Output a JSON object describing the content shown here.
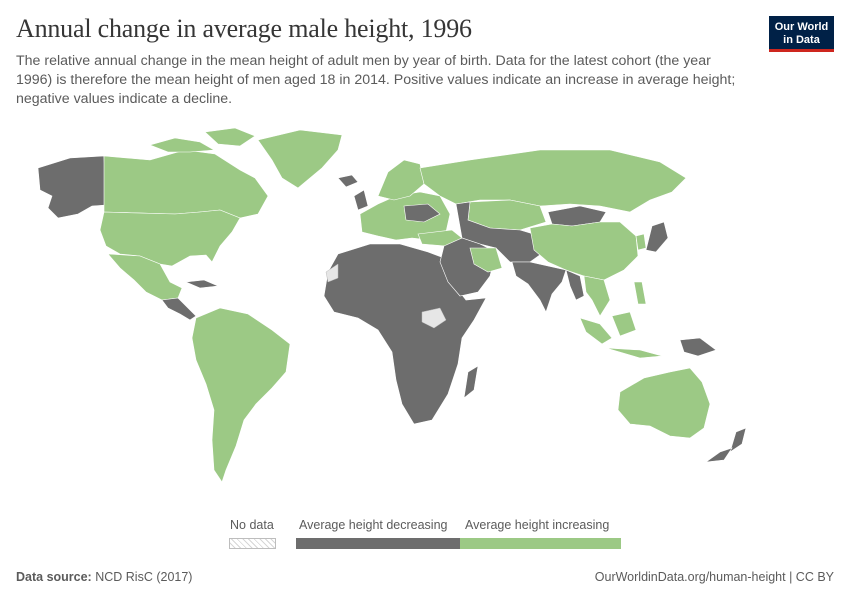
{
  "header": {
    "title": "Annual change in average male height, 1996",
    "subtitle": "The relative annual change in the mean height of adult men by year of birth. Data for the latest cohort (the year 1996) is therefore the mean height of men aged 18 in 2014. Positive values indicate an increase in average height; negative values indicate a decline."
  },
  "logo": {
    "line1": "Our World",
    "line2": "in Data"
  },
  "legend": {
    "no_data": "No data",
    "decreasing": "Average height decreasing",
    "increasing": "Average height increasing"
  },
  "colors": {
    "decreasing": "#6d6d6d",
    "increasing": "#9cc985",
    "no_data": "#e6e6e6",
    "ocean": "#ffffff",
    "border": "#ffffff"
  },
  "map_data": {
    "increasing": [
      "United States",
      "Canada",
      "Greenland",
      "Mexico",
      "Brazil",
      "Argentina",
      "Chile",
      "Peru",
      "Colombia",
      "Venezuela",
      "Bolivia",
      "Paraguay",
      "Uruguay",
      "Ecuador",
      "Russia",
      "Kazakhstan",
      "Mongolia",
      "China",
      "Spain",
      "France",
      "Germany",
      "Italy",
      "Poland",
      "Norway",
      "Sweden",
      "Finland",
      "Turkey",
      "Iran",
      "Vietnam",
      "Thailand",
      "Indonesia",
      "Philippines",
      "South Korea",
      "Australia"
    ],
    "decreasing": [
      "Alaska",
      "Central America",
      "Cuba",
      "North Africa",
      "Sub-Saharan Africa",
      "Middle East",
      "Saudi Arabia",
      "Central Asia",
      "Afghanistan",
      "Pakistan",
      "India",
      "Myanmar",
      "Japan",
      "Papua New Guinea",
      "New Zealand",
      "Madagascar",
      "Ukraine",
      "Iceland",
      "United Kingdom",
      "Ireland"
    ],
    "no_data": [
      "South Sudan",
      "Western Sahara"
    ]
  },
  "footer": {
    "source_label": "Data source:",
    "source_value": "NCD RisC (2017)",
    "credit": "OurWorldinData.org/human-height | CC BY"
  }
}
